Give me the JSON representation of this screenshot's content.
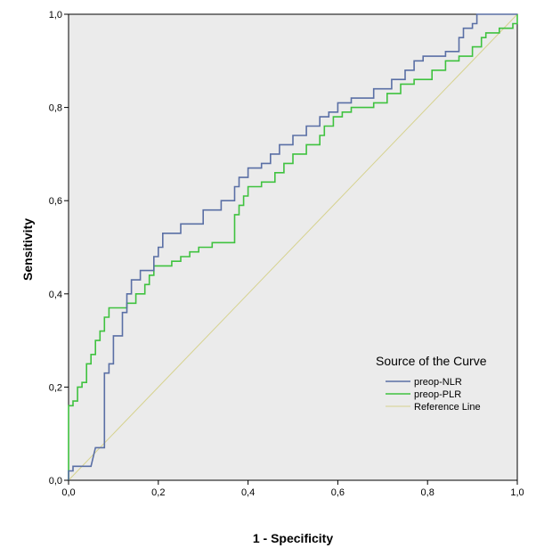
{
  "chart_data": {
    "type": "line",
    "title": "",
    "xlabel": "1 - Specificity",
    "ylabel": "Sensitivity",
    "xlim": [
      0,
      1
    ],
    "ylim": [
      0,
      1
    ],
    "x_ticks": [
      "0,0",
      "0,2",
      "0,4",
      "0,6",
      "0,8",
      "1,0"
    ],
    "y_ticks": [
      "0,0",
      "0,2",
      "0,4",
      "0,6",
      "0,8",
      "1,0"
    ],
    "grid": false,
    "legend": {
      "title": "Source of the Curve",
      "placement": "bottom-right"
    },
    "colors": {
      "plot_background": "#ebebeb",
      "nlr": "#5a6fa5",
      "plr": "#3fc23f",
      "reference": "#d6d28e"
    },
    "series": [
      {
        "name": "preop-NLR",
        "color": "#5a6fa5",
        "points": [
          [
            0.0,
            0.0
          ],
          [
            0.0,
            0.02
          ],
          [
            0.01,
            0.02
          ],
          [
            0.01,
            0.03
          ],
          [
            0.05,
            0.03
          ],
          [
            0.06,
            0.07
          ],
          [
            0.08,
            0.07
          ],
          [
            0.08,
            0.23
          ],
          [
            0.09,
            0.23
          ],
          [
            0.09,
            0.25
          ],
          [
            0.1,
            0.25
          ],
          [
            0.1,
            0.31
          ],
          [
            0.12,
            0.31
          ],
          [
            0.12,
            0.36
          ],
          [
            0.13,
            0.36
          ],
          [
            0.13,
            0.4
          ],
          [
            0.14,
            0.4
          ],
          [
            0.14,
            0.43
          ],
          [
            0.16,
            0.43
          ],
          [
            0.16,
            0.45
          ],
          [
            0.19,
            0.45
          ],
          [
            0.19,
            0.48
          ],
          [
            0.2,
            0.48
          ],
          [
            0.2,
            0.5
          ],
          [
            0.21,
            0.5
          ],
          [
            0.21,
            0.53
          ],
          [
            0.25,
            0.53
          ],
          [
            0.25,
            0.55
          ],
          [
            0.3,
            0.55
          ],
          [
            0.3,
            0.58
          ],
          [
            0.34,
            0.58
          ],
          [
            0.34,
            0.6
          ],
          [
            0.37,
            0.6
          ],
          [
            0.37,
            0.63
          ],
          [
            0.38,
            0.63
          ],
          [
            0.38,
            0.65
          ],
          [
            0.4,
            0.65
          ],
          [
            0.4,
            0.67
          ],
          [
            0.43,
            0.67
          ],
          [
            0.43,
            0.68
          ],
          [
            0.45,
            0.68
          ],
          [
            0.45,
            0.7
          ],
          [
            0.47,
            0.7
          ],
          [
            0.47,
            0.72
          ],
          [
            0.5,
            0.72
          ],
          [
            0.5,
            0.74
          ],
          [
            0.53,
            0.74
          ],
          [
            0.53,
            0.76
          ],
          [
            0.56,
            0.76
          ],
          [
            0.56,
            0.78
          ],
          [
            0.58,
            0.78
          ],
          [
            0.58,
            0.79
          ],
          [
            0.6,
            0.79
          ],
          [
            0.6,
            0.81
          ],
          [
            0.63,
            0.81
          ],
          [
            0.63,
            0.82
          ],
          [
            0.68,
            0.82
          ],
          [
            0.68,
            0.84
          ],
          [
            0.72,
            0.84
          ],
          [
            0.72,
            0.86
          ],
          [
            0.75,
            0.86
          ],
          [
            0.75,
            0.88
          ],
          [
            0.77,
            0.88
          ],
          [
            0.77,
            0.9
          ],
          [
            0.79,
            0.9
          ],
          [
            0.79,
            0.91
          ],
          [
            0.84,
            0.91
          ],
          [
            0.84,
            0.92
          ],
          [
            0.87,
            0.92
          ],
          [
            0.87,
            0.95
          ],
          [
            0.88,
            0.95
          ],
          [
            0.88,
            0.97
          ],
          [
            0.9,
            0.97
          ],
          [
            0.9,
            0.98
          ],
          [
            0.91,
            0.98
          ],
          [
            0.91,
            1.0
          ],
          [
            1.0,
            1.0
          ]
        ]
      },
      {
        "name": "preop-PLR",
        "color": "#3fc23f",
        "points": [
          [
            0.0,
            0.0
          ],
          [
            0.0,
            0.16
          ],
          [
            0.01,
            0.16
          ],
          [
            0.01,
            0.17
          ],
          [
            0.02,
            0.17
          ],
          [
            0.02,
            0.2
          ],
          [
            0.03,
            0.2
          ],
          [
            0.03,
            0.21
          ],
          [
            0.04,
            0.21
          ],
          [
            0.04,
            0.25
          ],
          [
            0.05,
            0.25
          ],
          [
            0.05,
            0.27
          ],
          [
            0.06,
            0.27
          ],
          [
            0.06,
            0.3
          ],
          [
            0.07,
            0.3
          ],
          [
            0.07,
            0.32
          ],
          [
            0.08,
            0.32
          ],
          [
            0.08,
            0.35
          ],
          [
            0.09,
            0.35
          ],
          [
            0.09,
            0.37
          ],
          [
            0.13,
            0.37
          ],
          [
            0.13,
            0.38
          ],
          [
            0.15,
            0.38
          ],
          [
            0.15,
            0.4
          ],
          [
            0.17,
            0.4
          ],
          [
            0.17,
            0.42
          ],
          [
            0.18,
            0.42
          ],
          [
            0.18,
            0.44
          ],
          [
            0.19,
            0.44
          ],
          [
            0.19,
            0.46
          ],
          [
            0.23,
            0.46
          ],
          [
            0.23,
            0.47
          ],
          [
            0.25,
            0.47
          ],
          [
            0.25,
            0.48
          ],
          [
            0.27,
            0.48
          ],
          [
            0.27,
            0.49
          ],
          [
            0.29,
            0.49
          ],
          [
            0.29,
            0.5
          ],
          [
            0.32,
            0.5
          ],
          [
            0.32,
            0.51
          ],
          [
            0.37,
            0.51
          ],
          [
            0.37,
            0.57
          ],
          [
            0.38,
            0.57
          ],
          [
            0.38,
            0.59
          ],
          [
            0.39,
            0.59
          ],
          [
            0.39,
            0.61
          ],
          [
            0.4,
            0.61
          ],
          [
            0.4,
            0.63
          ],
          [
            0.43,
            0.63
          ],
          [
            0.43,
            0.64
          ],
          [
            0.46,
            0.64
          ],
          [
            0.46,
            0.66
          ],
          [
            0.48,
            0.66
          ],
          [
            0.48,
            0.68
          ],
          [
            0.5,
            0.68
          ],
          [
            0.5,
            0.7
          ],
          [
            0.53,
            0.7
          ],
          [
            0.53,
            0.72
          ],
          [
            0.56,
            0.72
          ],
          [
            0.56,
            0.74
          ],
          [
            0.57,
            0.74
          ],
          [
            0.57,
            0.76
          ],
          [
            0.59,
            0.76
          ],
          [
            0.59,
            0.78
          ],
          [
            0.61,
            0.78
          ],
          [
            0.61,
            0.79
          ],
          [
            0.63,
            0.79
          ],
          [
            0.63,
            0.8
          ],
          [
            0.68,
            0.8
          ],
          [
            0.68,
            0.81
          ],
          [
            0.71,
            0.81
          ],
          [
            0.71,
            0.83
          ],
          [
            0.74,
            0.83
          ],
          [
            0.74,
            0.85
          ],
          [
            0.77,
            0.85
          ],
          [
            0.77,
            0.86
          ],
          [
            0.81,
            0.86
          ],
          [
            0.81,
            0.88
          ],
          [
            0.84,
            0.88
          ],
          [
            0.84,
            0.9
          ],
          [
            0.87,
            0.9
          ],
          [
            0.87,
            0.91
          ],
          [
            0.9,
            0.91
          ],
          [
            0.9,
            0.93
          ],
          [
            0.92,
            0.93
          ],
          [
            0.92,
            0.95
          ],
          [
            0.93,
            0.95
          ],
          [
            0.93,
            0.96
          ],
          [
            0.96,
            0.96
          ],
          [
            0.96,
            0.97
          ],
          [
            0.99,
            0.97
          ],
          [
            0.99,
            0.98
          ],
          [
            1.0,
            0.98
          ],
          [
            1.0,
            1.0
          ]
        ]
      },
      {
        "name": "Reference Line",
        "color": "#d6d28e",
        "points": [
          [
            0.0,
            0.0
          ],
          [
            1.0,
            1.0
          ]
        ]
      }
    ]
  }
}
